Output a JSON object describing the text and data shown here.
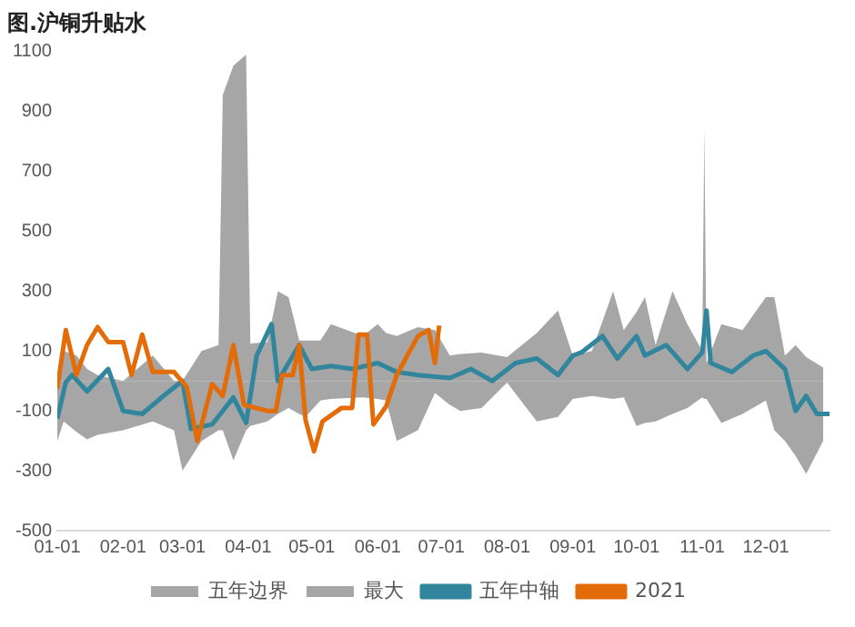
{
  "chart_data": {
    "type": "line",
    "title": "图.沪铜升贴水",
    "xlim": [
      "--01-01",
      "--12-31"
    ],
    "xticks": [
      {
        "value": "--01-01",
        "label": "01-01"
      },
      {
        "value": "--02-01",
        "label": "02-01"
      },
      {
        "value": "--03-01",
        "label": "03-01"
      },
      {
        "value": "--04-01",
        "label": "04-01"
      },
      {
        "value": "--05-01",
        "label": "05-01"
      },
      {
        "value": "--06-01",
        "label": "06-01"
      },
      {
        "value": "--07-01",
        "label": "07-01"
      },
      {
        "value": "--08-01",
        "label": "08-01"
      },
      {
        "value": "--09-01",
        "label": "09-01"
      },
      {
        "value": "--10-01",
        "label": "10-01"
      },
      {
        "value": "--11-01",
        "label": "11-01"
      },
      {
        "value": "--12-01",
        "label": "12-01"
      }
    ],
    "ylim": [
      -500,
      1100
    ],
    "yticks": [
      -500,
      -300,
      -100,
      100,
      300,
      500,
      700,
      900,
      1100
    ],
    "grid": false,
    "legend": "bottom",
    "marker": "none",
    "line_style": "solid",
    "series": [
      {
        "name": "五年边界",
        "type": "area",
        "color": "#a6a6a6",
        "x": [
          "--01-01",
          "--01-04",
          "--01-10",
          "--01-15",
          "--01-20",
          "--02-01",
          "--02-15",
          "--02-25",
          "--03-01",
          "--03-10",
          "--03-18",
          "--03-20",
          "--03-25",
          "--03-31",
          "--04-02",
          "--04-10",
          "--04-15",
          "--04-20",
          "--04-25",
          "--04-28",
          "--05-05",
          "--05-10",
          "--05-25",
          "--06-01",
          "--06-05",
          "--06-10",
          "--06-20",
          "--06-28",
          "--07-05",
          "--07-10",
          "--07-20",
          "--08-01",
          "--08-15",
          "--08-25",
          "--09-01",
          "--09-10",
          "--09-20",
          "--09-25",
          "--10-01",
          "--10-05",
          "--10-10",
          "--10-18",
          "--10-25",
          "--11-01",
          "--11-02",
          "--11-03",
          "--11-10",
          "--11-20",
          "--12-01",
          "--12-05",
          "--12-10",
          "--12-15",
          "--12-20",
          "--12-28"
        ],
        "values": [
          -200,
          -135,
          -170,
          -195,
          -180,
          -165,
          -135,
          -165,
          -300,
          -200,
          -165,
          -165,
          -265,
          -165,
          -150,
          -135,
          -110,
          -90,
          -110,
          -120,
          -65,
          -60,
          -55,
          -60,
          -65,
          -200,
          -165,
          -40,
          -80,
          -100,
          -90,
          -5,
          -135,
          -120,
          -60,
          -50,
          -60,
          -55,
          -150,
          -140,
          -135,
          -110,
          -90,
          -55,
          -60,
          -60,
          -140,
          -110,
          -65,
          -165,
          -200,
          -250,
          -310,
          -200
        ]
      },
      {
        "name": "最大",
        "type": "area",
        "color": "#a6a6a6",
        "x": [
          "--01-01",
          "--01-04",
          "--01-10",
          "--01-15",
          "--01-20",
          "--02-01",
          "--02-15",
          "--02-25",
          "--03-01",
          "--03-10",
          "--03-18",
          "--03-20",
          "--03-25",
          "--03-31",
          "--04-02",
          "--04-10",
          "--04-15",
          "--04-20",
          "--04-25",
          "--04-28",
          "--05-05",
          "--05-10",
          "--05-25",
          "--06-01",
          "--06-05",
          "--06-10",
          "--06-20",
          "--06-28",
          "--07-05",
          "--07-10",
          "--07-20",
          "--08-01",
          "--08-15",
          "--08-25",
          "--09-01",
          "--09-10",
          "--09-20",
          "--09-25",
          "--10-01",
          "--10-05",
          "--10-10",
          "--10-18",
          "--10-25",
          "--11-01",
          "--11-02",
          "--11-03",
          "--11-10",
          "--11-20",
          "--12-01",
          "--12-05",
          "--12-10",
          "--12-15",
          "--12-20",
          "--12-28"
        ],
        "values": [
          20,
          100,
          85,
          40,
          20,
          0,
          85,
          0,
          0,
          100,
          120,
          955,
          1053,
          1090,
          125,
          130,
          300,
          280,
          135,
          135,
          135,
          190,
          150,
          190,
          160,
          150,
          180,
          170,
          85,
          90,
          95,
          80,
          160,
          235,
          85,
          100,
          300,
          170,
          230,
          280,
          120,
          300,
          190,
          100,
          845,
          60,
          190,
          170,
          280,
          280,
          85,
          120,
          80,
          45
        ]
      },
      {
        "name": "五年中轴",
        "type": "line",
        "color": "#31859c",
        "x": [
          "--01-01",
          "--01-05",
          "--01-08",
          "--01-15",
          "--01-25",
          "--02-01",
          "--02-10",
          "--02-20",
          "--03-01",
          "--03-05",
          "--03-15",
          "--03-25",
          "--03-31",
          "--04-05",
          "--04-12",
          "--04-15",
          "--04-25",
          "--05-01",
          "--05-10",
          "--05-20",
          "--06-01",
          "--06-10",
          "--06-20",
          "--07-05",
          "--07-15",
          "--07-25",
          "--08-05",
          "--08-15",
          "--08-25",
          "--09-01",
          "--09-05",
          "--09-15",
          "--09-22",
          "--10-01",
          "--10-05",
          "--10-15",
          "--10-25",
          "--11-01",
          "--11-03",
          "--11-05",
          "--11-15",
          "--11-25",
          "--12-01",
          "--12-10",
          "--12-15",
          "--12-20",
          "--12-25",
          "--12-31"
        ],
        "values": [
          -125,
          -5,
          20,
          -35,
          40,
          -100,
          -110,
          -50,
          0,
          -160,
          -145,
          -55,
          -140,
          85,
          190,
          0,
          120,
          40,
          50,
          40,
          60,
          30,
          20,
          10,
          40,
          0,
          60,
          75,
          20,
          85,
          95,
          150,
          75,
          150,
          85,
          120,
          40,
          95,
          235,
          60,
          30,
          85,
          100,
          40,
          -100,
          -50,
          -110,
          -110
        ]
      },
      {
        "name": "2021",
        "type": "line",
        "color": "#e36c09",
        "x": [
          "--01-01",
          "--01-05",
          "--01-10",
          "--01-15",
          "--01-20",
          "--01-25",
          "--02-01",
          "--02-05",
          "--02-10",
          "--02-15",
          "--02-25",
          "--03-03",
          "--03-08",
          "--03-15",
          "--03-20",
          "--03-25",
          "--03-30",
          "--04-10",
          "--04-14",
          "--04-17",
          "--04-22",
          "--04-25",
          "--04-28",
          "--05-02",
          "--05-06",
          "--05-15",
          "--05-20",
          "--05-23",
          "--05-27",
          "--05-30",
          "--06-05",
          "--06-10",
          "--06-15",
          "--06-20",
          "--06-25",
          "--06-28",
          "--06-30"
        ],
        "values": [
          -25,
          170,
          20,
          120,
          180,
          130,
          130,
          20,
          155,
          30,
          30,
          -20,
          -200,
          -10,
          -50,
          120,
          -80,
          -100,
          -100,
          20,
          20,
          120,
          -130,
          -235,
          -135,
          -90,
          -90,
          155,
          155,
          -145,
          -85,
          20,
          85,
          150,
          170,
          60,
          185
        ]
      }
    ]
  }
}
